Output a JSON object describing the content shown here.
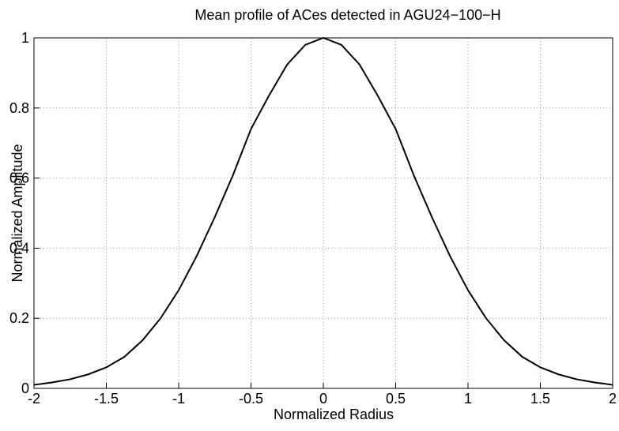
{
  "chart_data": {
    "type": "line",
    "title": "Mean profile of ACes detected in AGU24−100−H",
    "x_label": "Normalized Radius",
    "y_label": "Normalized Amplitude",
    "x": [
      -2,
      -1.875,
      -1.75,
      -1.625,
      -1.5,
      -1.375,
      -1.25,
      -1.125,
      -1,
      -0.875,
      -0.75,
      -0.625,
      -0.5,
      -0.375,
      -0.25,
      -0.125,
      0,
      0.125,
      0.25,
      0.375,
      0.5,
      0.625,
      0.75,
      0.875,
      1,
      1.125,
      1.25,
      1.375,
      1.5,
      1.625,
      1.75,
      1.875,
      2
    ],
    "series": [
      {
        "color": "#000000",
        "values": [
          0.01,
          0.017,
          0.026,
          0.04,
          0.06,
          0.09,
          0.137,
          0.2,
          0.28,
          0.378,
          0.489,
          0.608,
          0.74,
          0.836,
          0.924,
          0.98,
          1,
          0.98,
          0.924,
          0.836,
          0.74,
          0.608,
          0.489,
          0.378,
          0.28,
          0.2,
          0.137,
          0.09,
          0.06,
          0.04,
          0.026,
          0.017,
          0.01
        ]
      }
    ],
    "xlim": [
      -2,
      2
    ],
    "ylim": [
      0,
      1
    ],
    "xticks": [
      -2,
      -1.5,
      -1,
      -0.5,
      0,
      0.5,
      1,
      1.5,
      2
    ],
    "yticks": [
      0,
      0.2,
      0.4,
      0.6,
      0.8,
      1
    ],
    "grid": true
  }
}
